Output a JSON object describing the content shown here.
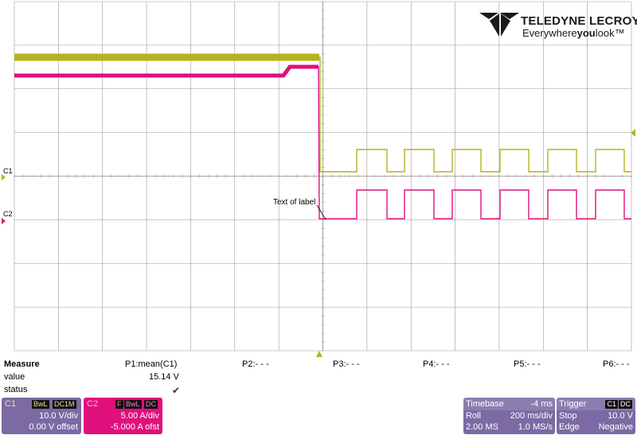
{
  "logo": {
    "brand": "TELEDYNE LECROY",
    "tagline_pre": "Everywhere",
    "tagline_bold": "you",
    "tagline_post": "look",
    "trademark": "™"
  },
  "scope": {
    "channel_labels": {
      "c1": "C1",
      "c2": "C2"
    },
    "annotation": "Text of label",
    "colors": {
      "c1": "#b6b21a",
      "c2": "#e0107c",
      "grid": "#9a9a9a",
      "cursor": "#b6b21a"
    }
  },
  "measure": {
    "header": "Measure",
    "row_labels": [
      "value",
      "status"
    ],
    "params": [
      {
        "name": "P1:mean(C1)",
        "value": "15.14 V",
        "status": "✔"
      },
      {
        "name": "P2:- - -",
        "value": "",
        "status": ""
      },
      {
        "name": "P3:- - -",
        "value": "",
        "status": ""
      },
      {
        "name": "P4:- - -",
        "value": "",
        "status": ""
      },
      {
        "name": "P5:- - -",
        "value": "",
        "status": ""
      },
      {
        "name": "P6:- - -",
        "value": "",
        "status": ""
      }
    ]
  },
  "c1_box": {
    "title": "C1",
    "tags": [
      "BwL",
      "DC1M"
    ],
    "vdiv": "10.0 V/div",
    "offset": "0.00 V offset"
  },
  "c2_box": {
    "title": "C2",
    "tags": [
      "F",
      "BwL",
      "DC"
    ],
    "vdiv": "5.00 A/div",
    "offset": "-5.000 A ofst"
  },
  "timebase": {
    "title": "Timebase",
    "delay": "-4 ms",
    "mode": "Roll",
    "tdiv": "200 ms/div",
    "samples": "2.00 MS",
    "rate": "1.0 MS/s"
  },
  "trigger": {
    "title": "Trigger",
    "source": "C1",
    "coupling": "DC",
    "mode": "Stop",
    "level": "10.0 V",
    "type": "Edge",
    "slope": "Negative"
  }
}
